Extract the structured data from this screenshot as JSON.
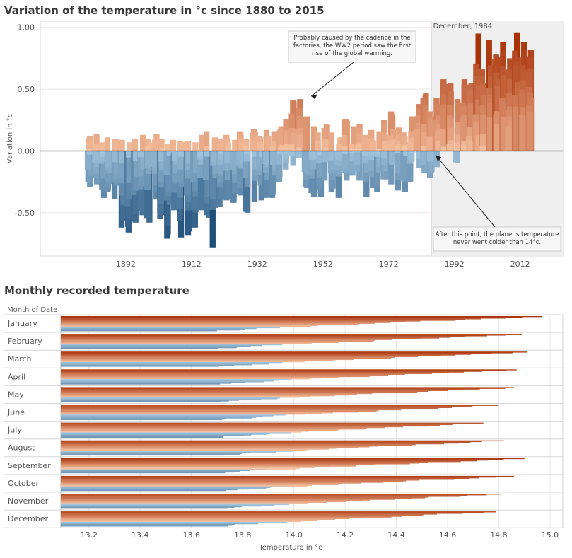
{
  "chart_data": [
    {
      "type": "bar",
      "title": "Variation of the temperature in °c since 1880 to 2015",
      "ylabel": "Variation in °c",
      "ylim": [
        -0.85,
        1.05
      ],
      "y_ticks": [
        "1.00",
        "0.50",
        "0.00",
        "-0.50"
      ],
      "y_tick_values": [
        1.0,
        0.5,
        0.0,
        -0.5
      ],
      "x_ticks": [
        "1892",
        "1912",
        "1932",
        "1952",
        "1972",
        "1992",
        "2012"
      ],
      "x_tick_values": [
        1892,
        1912,
        1932,
        1952,
        1972,
        1992,
        2012
      ],
      "x_range": [
        1866,
        2025
      ],
      "reference_line": {
        "label": "December, 1984",
        "x": 1984.9
      },
      "annotations": [
        {
          "text": [
            "Probably caused by the cadence in the",
            "factories, the WW2 period saw the first",
            "rise of the global warming."
          ],
          "points_to": [
            1945,
            0.46
          ]
        },
        {
          "text": [
            "After this point, the planet's temperature",
            "never went colder than 14°c."
          ],
          "points_to": [
            1985,
            -0.01
          ]
        }
      ],
      "yearly_anomaly": {
        "years": [
          1880,
          1882,
          1884,
          1886,
          1888,
          1890,
          1892,
          1894,
          1896,
          1898,
          1900,
          1902,
          1904,
          1906,
          1908,
          1910,
          1912,
          1914,
          1916,
          1918,
          1920,
          1922,
          1924,
          1926,
          1928,
          1930,
          1932,
          1934,
          1936,
          1938,
          1940,
          1942,
          1944,
          1946,
          1948,
          1950,
          1952,
          1954,
          1956,
          1958,
          1960,
          1962,
          1964,
          1966,
          1968,
          1970,
          1972,
          1974,
          1976,
          1978,
          1980,
          1982,
          1984,
          1986,
          1988,
          1990,
          1992,
          1994,
          1996,
          1998,
          2000,
          2002,
          2004,
          2006,
          2008,
          2010,
          2012,
          2014
        ],
        "min": [
          -0.29,
          -0.27,
          -0.38,
          -0.33,
          -0.39,
          -0.62,
          -0.66,
          -0.58,
          -0.52,
          -0.58,
          -0.39,
          -0.55,
          -0.71,
          -0.48,
          -0.7,
          -0.68,
          -0.62,
          -0.48,
          -0.54,
          -0.78,
          -0.45,
          -0.4,
          -0.42,
          -0.36,
          -0.5,
          -0.41,
          -0.4,
          -0.38,
          -0.38,
          -0.25,
          -0.15,
          -0.12,
          -0.06,
          -0.3,
          -0.37,
          -0.37,
          -0.24,
          -0.33,
          -0.38,
          -0.24,
          -0.2,
          -0.24,
          -0.37,
          -0.3,
          -0.33,
          -0.23,
          -0.27,
          -0.32,
          -0.33,
          -0.25,
          -0.14,
          -0.18,
          -0.22,
          -0.13,
          0.03,
          0.06,
          -0.1,
          0.05,
          0.08,
          0.13,
          0.04,
          0.27,
          0.19,
          0.27,
          0.2,
          0.36,
          0.28,
          0.32
        ],
        "max": [
          0.12,
          0.14,
          0.07,
          0.11,
          0.1,
          0.09,
          0.07,
          0.1,
          0.13,
          0.1,
          0.14,
          0.1,
          0.06,
          0.09,
          0.08,
          0.08,
          0.07,
          0.13,
          0.16,
          0.11,
          0.1,
          0.13,
          0.09,
          0.16,
          0.1,
          0.18,
          0.12,
          0.17,
          0.16,
          0.2,
          0.26,
          0.41,
          0.42,
          0.28,
          0.2,
          0.15,
          0.22,
          0.15,
          0.11,
          0.26,
          0.2,
          0.22,
          0.13,
          0.17,
          0.16,
          0.25,
          0.32,
          0.19,
          0.15,
          0.28,
          0.38,
          0.47,
          0.32,
          0.43,
          0.58,
          0.55,
          0.42,
          0.58,
          0.55,
          0.95,
          0.66,
          0.9,
          0.78,
          0.88,
          0.75,
          0.96,
          0.88,
          0.82
        ]
      }
    },
    {
      "type": "bar",
      "title": "Monthly recorded temperature",
      "row_header": "Month of Date",
      "xlabel": "Temperature in °c",
      "xlim": [
        13.09,
        15.05
      ],
      "x_ticks": [
        "13.2",
        "13.4",
        "13.6",
        "13.8",
        "14.0",
        "14.2",
        "14.4",
        "14.6",
        "14.8",
        "15.0"
      ],
      "x_tick_values": [
        13.2,
        13.4,
        13.6,
        13.8,
        14.0,
        14.2,
        14.4,
        14.6,
        14.8,
        15.0
      ],
      "categories": [
        "January",
        "February",
        "March",
        "April",
        "May",
        "June",
        "July",
        "August",
        "September",
        "October",
        "November",
        "December"
      ],
      "max_temperature": [
        14.97,
        14.89,
        14.91,
        14.87,
        14.86,
        14.8,
        14.74,
        14.82,
        14.9,
        14.86,
        14.81,
        14.79
      ]
    }
  ],
  "palette": {
    "cold_dark": "#1f4e79",
    "cold_light": "#a9cbe3",
    "neutral": "#d6d6d6",
    "warm_light": "#f9c8a8",
    "warm_dark": "#a83208",
    "grid": "#e8e8e8"
  }
}
